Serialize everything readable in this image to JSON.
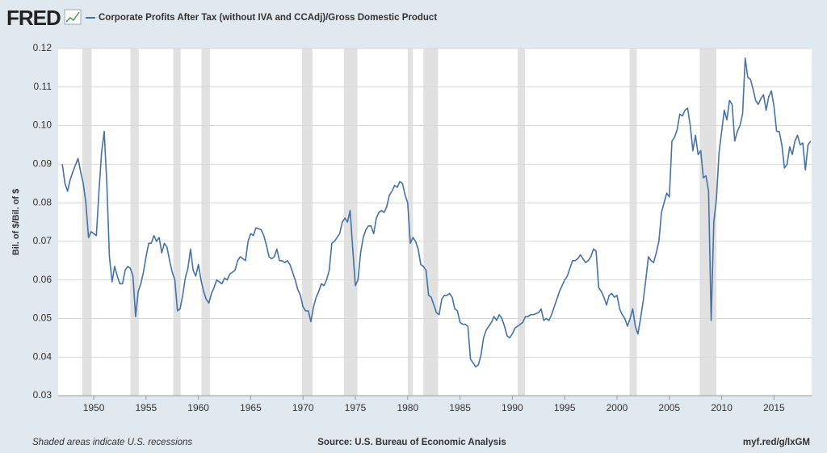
{
  "chart_data": {
    "type": "line",
    "logo": "FRED",
    "y_label": "Bil. of $/Bil. of $",
    "footnote": "Shaded areas indicate U.S. recessions",
    "source": "Source: U.S. Bureau of Economic Analysis",
    "link": "myf.red/g/lxGM",
    "xlim": [
      1946.6,
      2018.6
    ],
    "xticks": [
      1950,
      1955,
      1960,
      1965,
      1970,
      1975,
      1980,
      1985,
      1990,
      1995,
      2000,
      2005,
      2010,
      2015
    ],
    "ylim": [
      0.03,
      0.12
    ],
    "yticks": [
      0.03,
      0.04,
      0.05,
      0.06,
      0.07,
      0.08,
      0.09,
      {
        "value": 0.1,
        "label": "0.10"
      },
      0.11,
      0.12
    ],
    "grid": true,
    "recessions": [
      [
        1948.9,
        1949.8
      ],
      [
        1953.5,
        1954.3
      ],
      [
        1957.6,
        1958.3
      ],
      [
        1960.3,
        1961.1
      ],
      [
        1969.9,
        1970.9
      ],
      [
        1973.9,
        1975.2
      ],
      [
        1980.0,
        1980.5
      ],
      [
        1981.5,
        1982.9
      ],
      [
        1990.5,
        1991.2
      ],
      [
        2001.2,
        2001.9
      ],
      [
        2007.9,
        2009.5
      ]
    ],
    "recession_color": "#e1e1e1",
    "x": [
      1947.0,
      1947.25,
      1947.5,
      1947.75,
      1948.0,
      1948.5,
      1948.75,
      1949.0,
      1949.25,
      1949.5,
      1949.75,
      1950.0,
      1950.25,
      1950.5,
      1950.75,
      1951.0,
      1951.25,
      1951.5,
      1951.75,
      1952.0,
      1952.25,
      1952.5,
      1952.75,
      1953.0,
      1953.25,
      1953.5,
      1953.75,
      1954.0,
      1954.25,
      1954.5,
      1954.75,
      1955.0,
      1955.25,
      1955.5,
      1955.75,
      1956.0,
      1956.25,
      1956.5,
      1956.75,
      1957.0,
      1957.25,
      1957.5,
      1957.75,
      1958.0,
      1958.25,
      1958.5,
      1958.75,
      1959.0,
      1959.25,
      1959.5,
      1959.75,
      1960.0,
      1960.25,
      1960.5,
      1960.75,
      1961.0,
      1961.25,
      1961.5,
      1961.75,
      1962.0,
      1962.25,
      1962.5,
      1962.75,
      1963.0,
      1963.5,
      1963.75,
      1964.0,
      1964.5,
      1964.75,
      1965.0,
      1965.25,
      1965.5,
      1966.0,
      1966.25,
      1966.5,
      1966.75,
      1967.0,
      1967.25,
      1967.5,
      1967.75,
      1968.0,
      1968.25,
      1968.5,
      1968.75,
      1969.0,
      1969.25,
      1969.5,
      1969.75,
      1970.0,
      1970.25,
      1970.5,
      1970.75,
      1971.0,
      1971.25,
      1971.5,
      1971.75,
      1972.0,
      1972.25,
      1972.5,
      1972.75,
      1973.0,
      1973.25,
      1973.5,
      1973.75,
      1974.0,
      1974.25,
      1974.5,
      1974.75,
      1975.0,
      1975.25,
      1975.5,
      1975.75,
      1976.0,
      1976.25,
      1976.5,
      1976.75,
      1977.0,
      1977.25,
      1977.5,
      1977.75,
      1978.0,
      1978.25,
      1978.5,
      1978.75,
      1979.0,
      1979.25,
      1979.5,
      1979.75,
      1980.0,
      1980.25,
      1980.5,
      1980.75,
      1981.0,
      1981.25,
      1981.5,
      1981.75,
      1982.0,
      1982.25,
      1982.5,
      1982.75,
      1983.0,
      1983.25,
      1983.5,
      1983.75,
      1984.0,
      1984.25,
      1984.5,
      1984.75,
      1985.0,
      1985.25,
      1985.5,
      1985.75,
      1986.0,
      1986.25,
      1986.5,
      1986.75,
      1987.0,
      1987.25,
      1987.5,
      1987.75,
      1988.0,
      1988.25,
      1988.5,
      1988.75,
      1989.0,
      1989.25,
      1989.5,
      1989.75,
      1990.0,
      1990.25,
      1990.5,
      1990.75,
      1991.0,
      1991.25,
      1991.5,
      1991.75,
      1992.0,
      1992.5,
      1992.75,
      1993.0,
      1993.25,
      1993.5,
      1993.75,
      1994.0,
      1994.25,
      1994.5,
      1994.75,
      1995.0,
      1995.25,
      1995.5,
      1995.75,
      1996.0,
      1996.25,
      1996.5,
      1996.75,
      1997.0,
      1997.25,
      1997.5,
      1997.75,
      1998.0,
      1998.25,
      1998.5,
      1998.75,
      1999.0,
      1999.25,
      1999.5,
      1999.75,
      2000.0,
      2000.25,
      2000.5,
      2000.75,
      2001.0,
      2001.25,
      2001.5,
      2001.75,
      2002.0,
      2002.25,
      2002.5,
      2002.75,
      2003.0,
      2003.25,
      2003.5,
      2003.75,
      2004.0,
      2004.25,
      2004.5,
      2004.75,
      2005.0,
      2005.25,
      2005.5,
      2005.75,
      2006.0,
      2006.25,
      2006.5,
      2006.75,
      2007.0,
      2007.25,
      2007.5,
      2007.75,
      2008.0,
      2008.25,
      2008.5,
      2008.75,
      2009.0,
      2009.25,
      2009.5,
      2009.75,
      2010.0,
      2010.25,
      2010.5,
      2010.75,
      2011.0,
      2011.25,
      2011.5,
      2011.75,
      2012.0,
      2012.25,
      2012.5,
      2012.75,
      2013.0,
      2013.25,
      2013.5,
      2013.75,
      2014.0,
      2014.25,
      2014.5,
      2014.75,
      2015.0,
      2015.25,
      2015.5,
      2015.75,
      2016.0,
      2016.25,
      2016.5,
      2016.75,
      2017.0,
      2017.25,
      2017.5,
      2017.75,
      2018.0,
      2018.25,
      2018.5
    ],
    "series": [
      {
        "name": "Corporate Profits After Tax (without IVA and CCAdj)/Gross Domestic Product",
        "color": "#4572a7",
        "values": [
          0.09,
          0.085,
          0.083,
          0.086,
          0.088,
          0.0915,
          0.088,
          0.085,
          0.08,
          0.071,
          0.0725,
          0.072,
          0.0715,
          0.083,
          0.093,
          0.0985,
          0.085,
          0.066,
          0.0595,
          0.0635,
          0.061,
          0.059,
          0.059,
          0.0625,
          0.0635,
          0.063,
          0.061,
          0.0505,
          0.057,
          0.059,
          0.062,
          0.066,
          0.0695,
          0.0695,
          0.0715,
          0.07,
          0.071,
          0.067,
          0.0695,
          0.0685,
          0.065,
          0.062,
          0.06,
          0.052,
          0.0525,
          0.056,
          0.0605,
          0.063,
          0.068,
          0.0625,
          0.061,
          0.064,
          0.06,
          0.057,
          0.055,
          0.054,
          0.0565,
          0.058,
          0.06,
          0.0595,
          0.059,
          0.0605,
          0.06,
          0.0615,
          0.0625,
          0.065,
          0.066,
          0.065,
          0.07,
          0.072,
          0.0715,
          0.0735,
          0.073,
          0.0715,
          0.069,
          0.066,
          0.0655,
          0.066,
          0.068,
          0.065,
          0.065,
          0.0645,
          0.065,
          0.064,
          0.062,
          0.06,
          0.0575,
          0.056,
          0.053,
          0.052,
          0.052,
          0.0492,
          0.053,
          0.0555,
          0.057,
          0.059,
          0.0585,
          0.06,
          0.0625,
          0.0695,
          0.07,
          0.071,
          0.072,
          0.075,
          0.076,
          0.075,
          0.078,
          0.068,
          0.0585,
          0.06,
          0.067,
          0.071,
          0.073,
          0.074,
          0.074,
          0.072,
          0.076,
          0.0775,
          0.078,
          0.0775,
          0.079,
          0.082,
          0.083,
          0.0845,
          0.084,
          0.0855,
          0.085,
          0.082,
          0.08,
          0.0695,
          0.071,
          0.07,
          0.068,
          0.064,
          0.0635,
          0.0625,
          0.056,
          0.0555,
          0.0535,
          0.0515,
          0.051,
          0.055,
          0.056,
          0.056,
          0.0565,
          0.0555,
          0.0525,
          0.052,
          0.049,
          0.0485,
          0.0485,
          0.048,
          0.0395,
          0.0385,
          0.0375,
          0.038,
          0.0405,
          0.045,
          0.047,
          0.048,
          0.049,
          0.0505,
          0.0495,
          0.051,
          0.05,
          0.048,
          0.0455,
          0.045,
          0.046,
          0.0475,
          0.048,
          0.0485,
          0.049,
          0.0505,
          0.0505,
          0.051,
          0.051,
          0.0515,
          0.0525,
          0.0495,
          0.05,
          0.0495,
          0.051,
          0.053,
          0.055,
          0.057,
          0.0585,
          0.06,
          0.061,
          0.063,
          0.065,
          0.065,
          0.0655,
          0.0665,
          0.0655,
          0.0645,
          0.065,
          0.066,
          0.068,
          0.0675,
          0.058,
          0.057,
          0.0555,
          0.0535,
          0.056,
          0.0565,
          0.0555,
          0.056,
          0.0525,
          0.051,
          0.05,
          0.048,
          0.05,
          0.0525,
          0.048,
          0.046,
          0.05,
          0.0545,
          0.06,
          0.066,
          0.065,
          0.0645,
          0.067,
          0.07,
          0.0775,
          0.08,
          0.0825,
          0.0815,
          0.096,
          0.097,
          0.099,
          0.103,
          0.1025,
          0.104,
          0.1045,
          0.1,
          0.0935,
          0.0975,
          0.0925,
          0.0935,
          0.0865,
          0.087,
          0.083,
          0.0495,
          0.075,
          0.081,
          0.093,
          0.0985,
          0.104,
          0.1015,
          0.1065,
          0.1055,
          0.096,
          0.0985,
          0.1,
          0.103,
          0.1175,
          0.1125,
          0.112,
          0.1095,
          0.1065,
          0.1055,
          0.107,
          0.108,
          0.104,
          0.1075,
          0.109,
          0.105,
          0.0985,
          0.0985,
          0.095,
          0.089,
          0.09,
          0.0945,
          0.0925,
          0.096,
          0.0975,
          0.095,
          0.0955,
          0.0885,
          0.095,
          0.096
        ]
      }
    ]
  }
}
